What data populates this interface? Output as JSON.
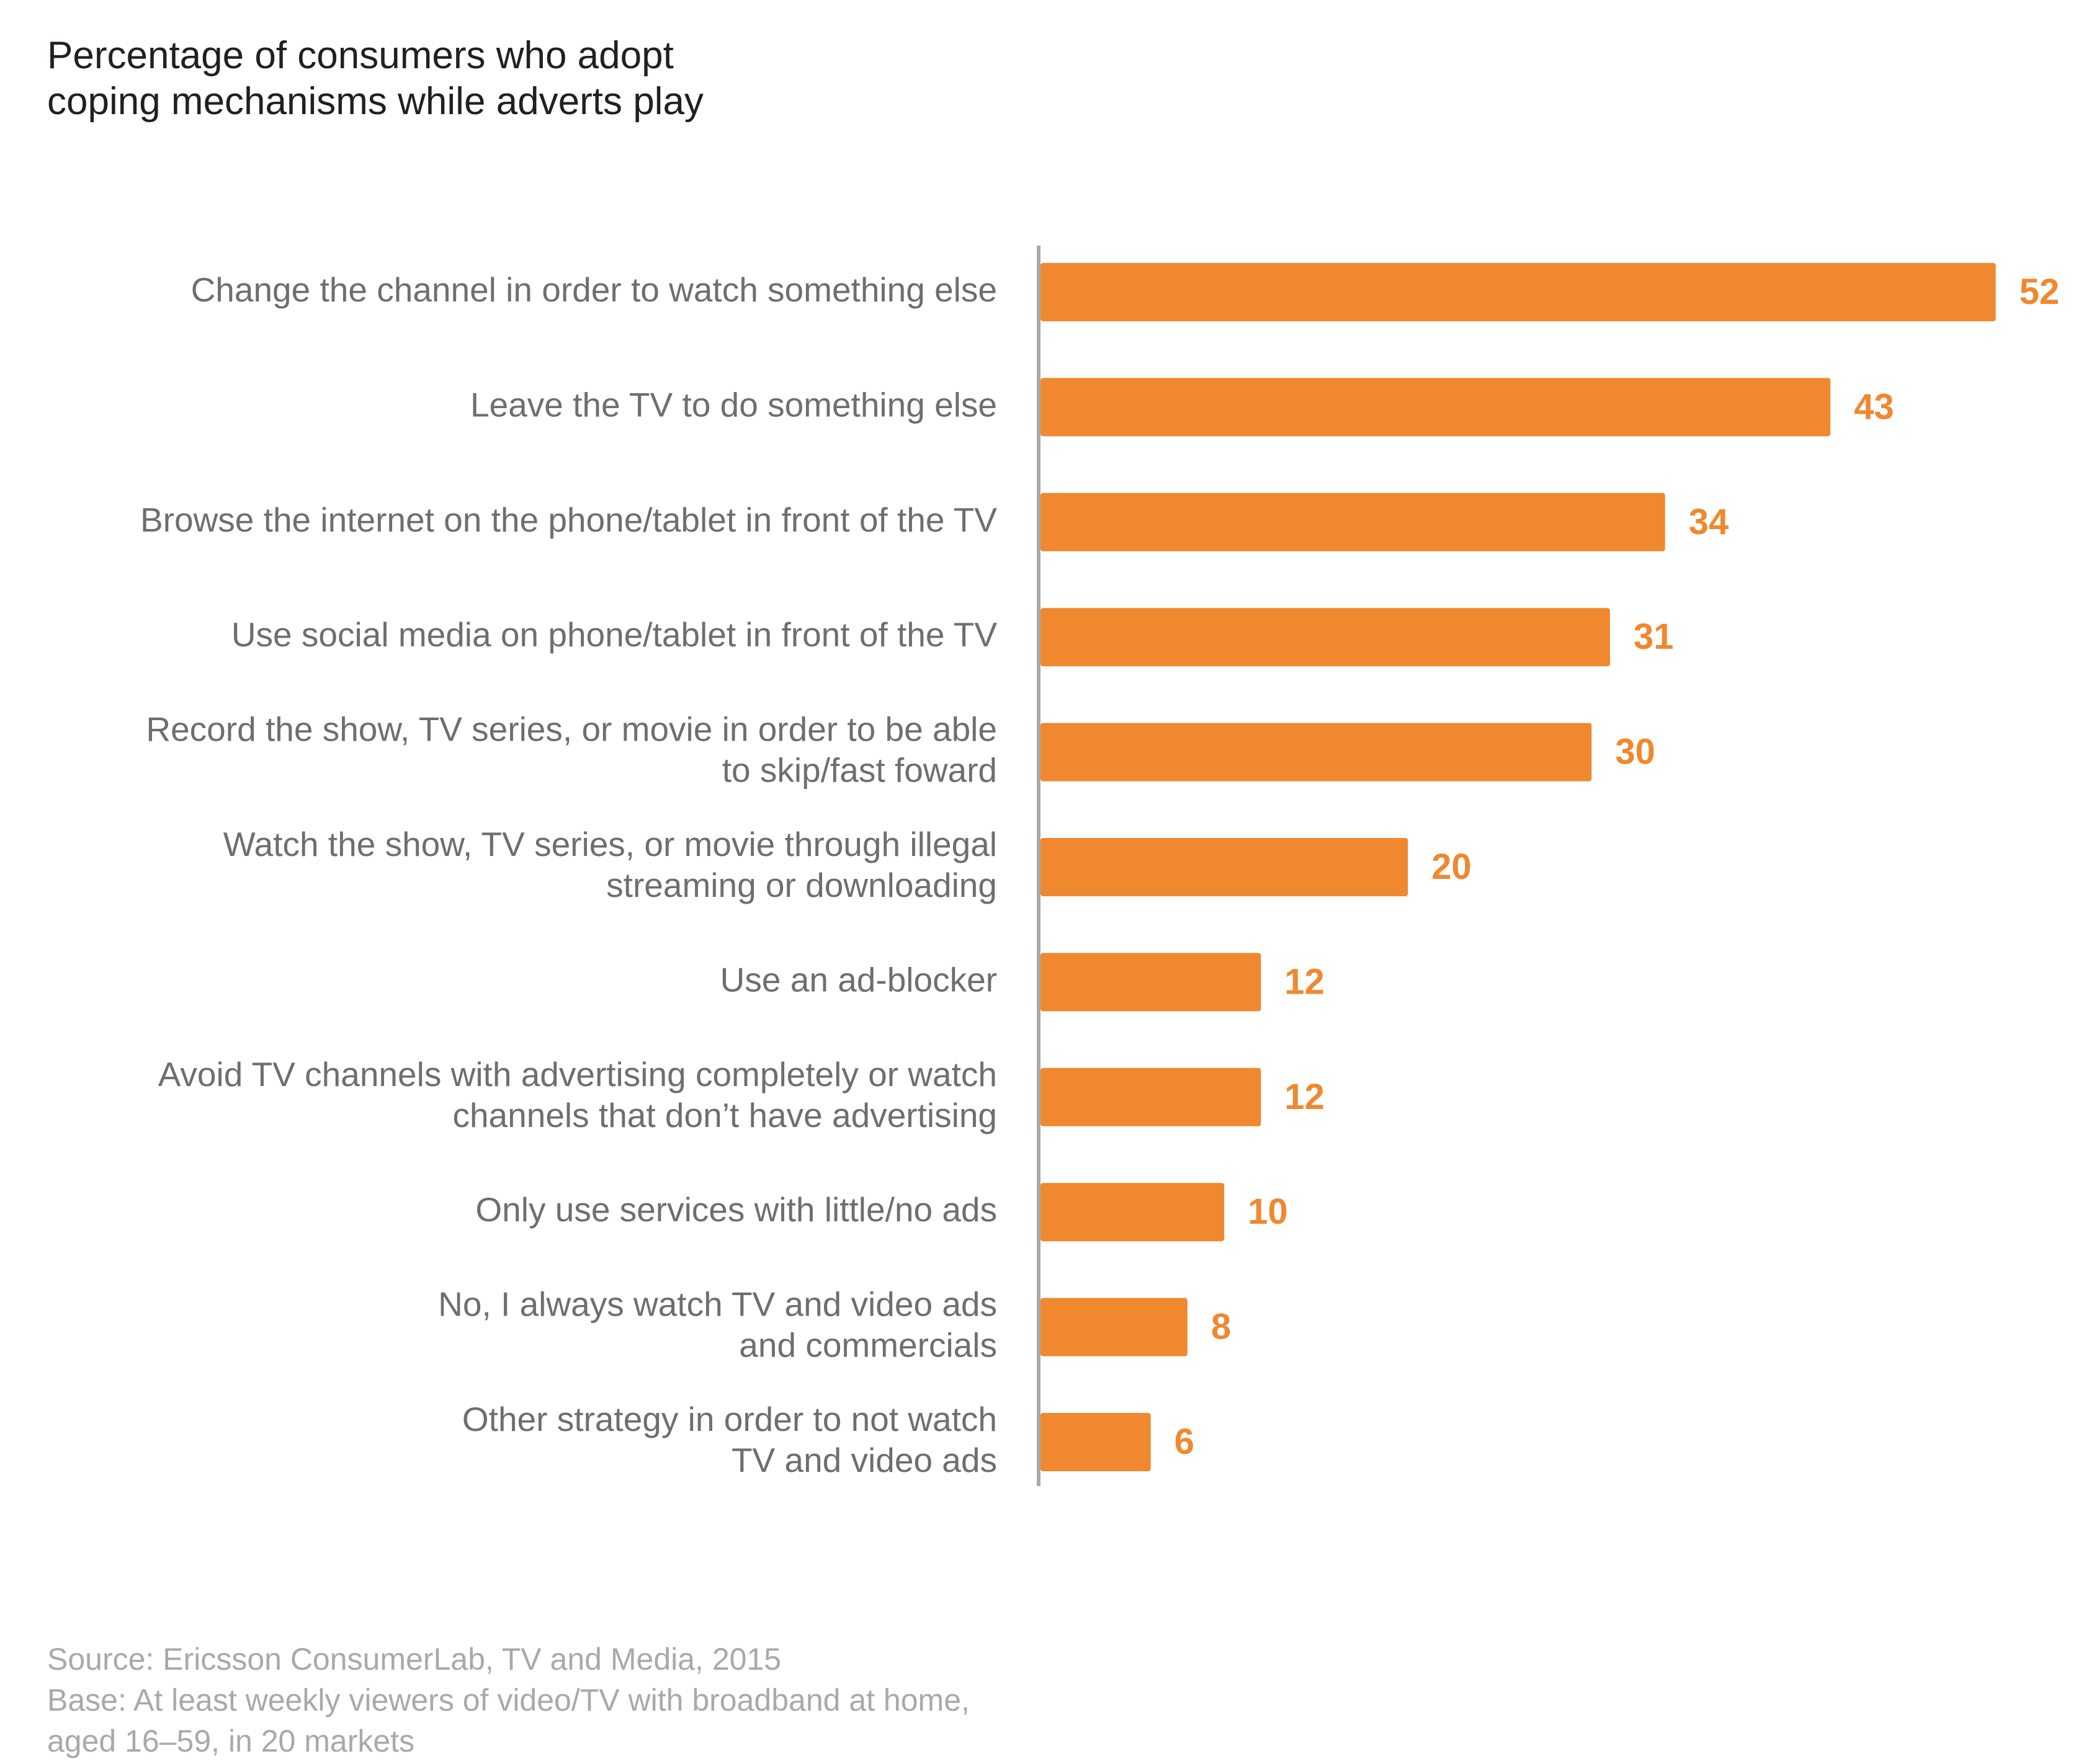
{
  "chart_data": {
    "type": "bar",
    "title": "Percentage of consumers who adopt\ncoping mechanisms while adverts play",
    "categories": [
      "Change the channel in order to watch something else",
      "Leave the TV to do something else",
      "Browse the internet on the phone/tablet in front of the TV",
      "Use social media on phone/tablet in front of the TV",
      "Record the show, TV series, or movie in order to be able\nto skip/fast foward",
      "Watch the show, TV series, or movie through illegal\nstreaming or downloading",
      "Use an ad-blocker",
      "Avoid TV channels with advertising completely or watch\nchannels that don’t have advertising",
      "Only use services with little/no ads",
      "No, I always watch TV and video ads\nand commercials",
      "Other strategy in order to not watch\nTV and video ads"
    ],
    "values": [
      52,
      43,
      34,
      31,
      30,
      20,
      12,
      12,
      10,
      8,
      6
    ],
    "color": "#f0882f",
    "xlim": [
      0,
      56
    ],
    "source": "Source: Ericsson ConsumerLab, TV and Media, 2015",
    "base": "Base: At least weekly viewers of video/TV with broadband at home,\naged 16–59, in 20 markets"
  }
}
